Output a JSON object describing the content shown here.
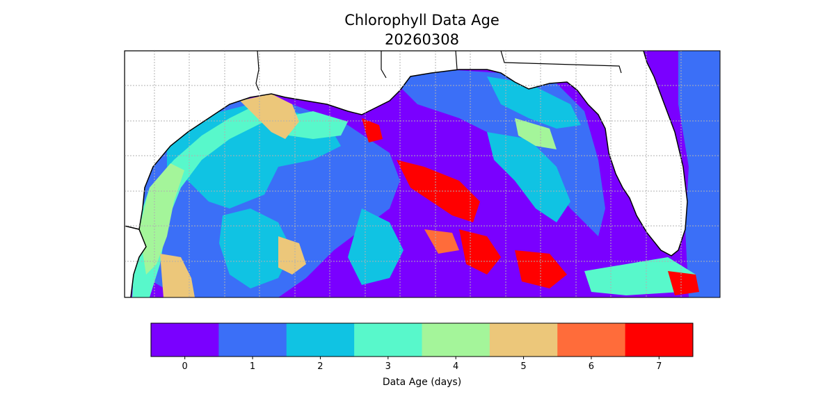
{
  "title": {
    "line1": "Chlorophyll Data Age",
    "line2": "20260308"
  },
  "colorbar": {
    "label": "Data Age (days)",
    "ticks": [
      "0",
      "1",
      "2",
      "3",
      "4",
      "5",
      "6",
      "7"
    ],
    "colors": [
      "#7a00ff",
      "#3b6ff7",
      "#10c3e3",
      "#58f8cb",
      "#a4f59a",
      "#ecc77a",
      "#ff6c3a",
      "#ff0000"
    ]
  },
  "map": {
    "land_color": "#ffffff",
    "coastline_color": "#000000",
    "gridline_color": "#b0b0b0",
    "no_data_color": "#ffffff"
  }
}
